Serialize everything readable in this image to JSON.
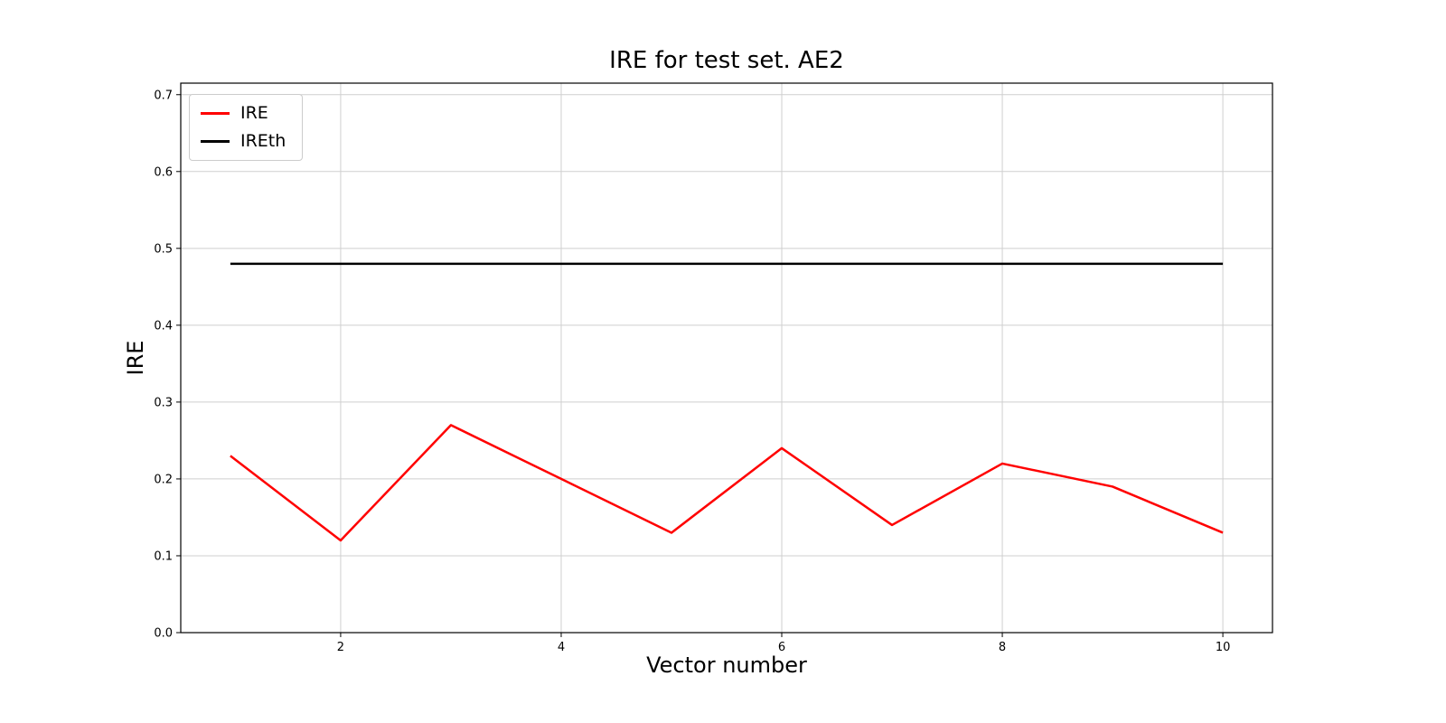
{
  "figure": {
    "title": "IRE for test set. AE2",
    "xlabel": "Vector number",
    "ylabel": "IRE"
  },
  "chart_data": {
    "type": "line",
    "title": "IRE for test set. AE2",
    "xlabel": "Vector number",
    "ylabel": "IRE",
    "x": [
      1,
      2,
      3,
      4,
      5,
      6,
      7,
      8,
      9,
      10
    ],
    "series": [
      {
        "name": "IRE",
        "color": "#ff0000",
        "values": [
          0.23,
          0.12,
          0.27,
          0.2,
          0.13,
          0.24,
          0.14,
          0.22,
          0.19,
          0.13
        ]
      },
      {
        "name": "IREth",
        "color": "#000000",
        "values": [
          0.48,
          0.48,
          0.48,
          0.48,
          0.48,
          0.48,
          0.48,
          0.48,
          0.48,
          0.48
        ]
      }
    ],
    "xlim": [
      0.55,
      10.45
    ],
    "ylim": [
      0.0,
      0.715
    ],
    "xticks": [
      2,
      4,
      6,
      8,
      10
    ],
    "xticklabels": [
      "2",
      "4",
      "6",
      "8",
      "10"
    ],
    "yticks": [
      0.0,
      0.1,
      0.2,
      0.3,
      0.4,
      0.5,
      0.6,
      0.7
    ],
    "yticklabels": [
      "0.0",
      "0.1",
      "0.2",
      "0.3",
      "0.4",
      "0.5",
      "0.6",
      "0.7"
    ],
    "grid": true,
    "grid_color": "#cfcfcf",
    "legend_position": "upper left",
    "legend_entries": [
      "IRE",
      "IREth"
    ]
  }
}
